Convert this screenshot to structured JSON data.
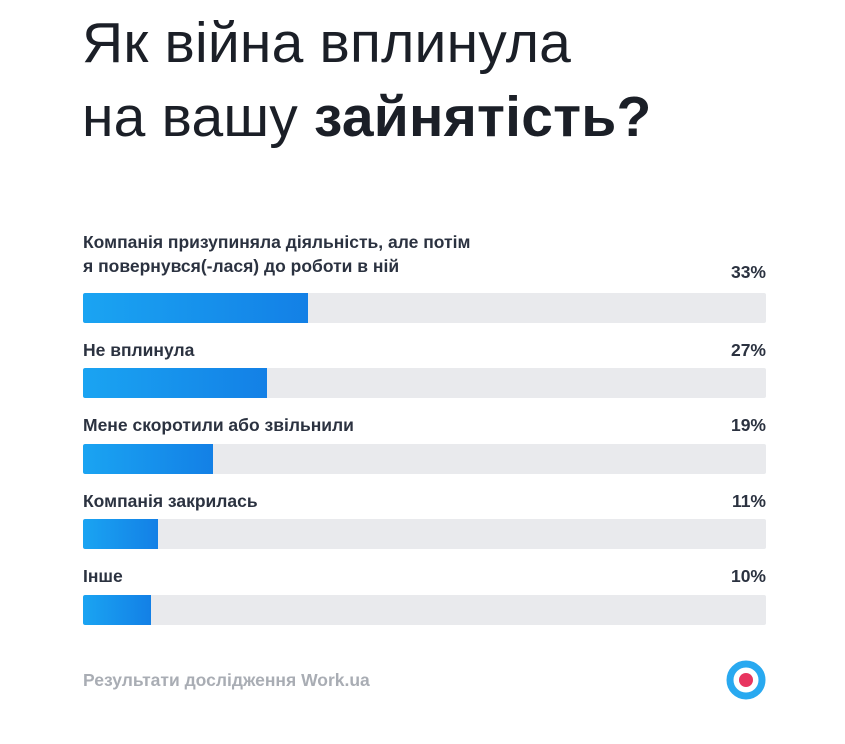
{
  "title": {
    "line1": "Як війна вплинула",
    "line2_regular": "на вашу ",
    "line2_bold": "зайнятість?"
  },
  "chart_data": {
    "type": "bar",
    "orientation": "horizontal",
    "categories": [
      "Компанія призупиняла діяльність, але потім\nя повернувся(-лася) до роботи в ній",
      "Не вплинула",
      "Мене скоротили або звільнили",
      "Компанія закрилась",
      "Інше"
    ],
    "values": [
      33,
      27,
      19,
      11,
      10
    ],
    "value_labels": [
      "33%",
      "27%",
      "19%",
      "11%",
      "10%"
    ],
    "xlim": [
      0,
      100
    ],
    "grid": false,
    "colors": {
      "bar": "#1790EC",
      "track": "#E9EAED"
    }
  },
  "footer": {
    "source": "Результати дослідження Work.ua"
  },
  "logo": {
    "icon": "work-ua-logo-icon",
    "colors": {
      "ring": "#29A9F0",
      "dot": "#E8355F"
    }
  }
}
